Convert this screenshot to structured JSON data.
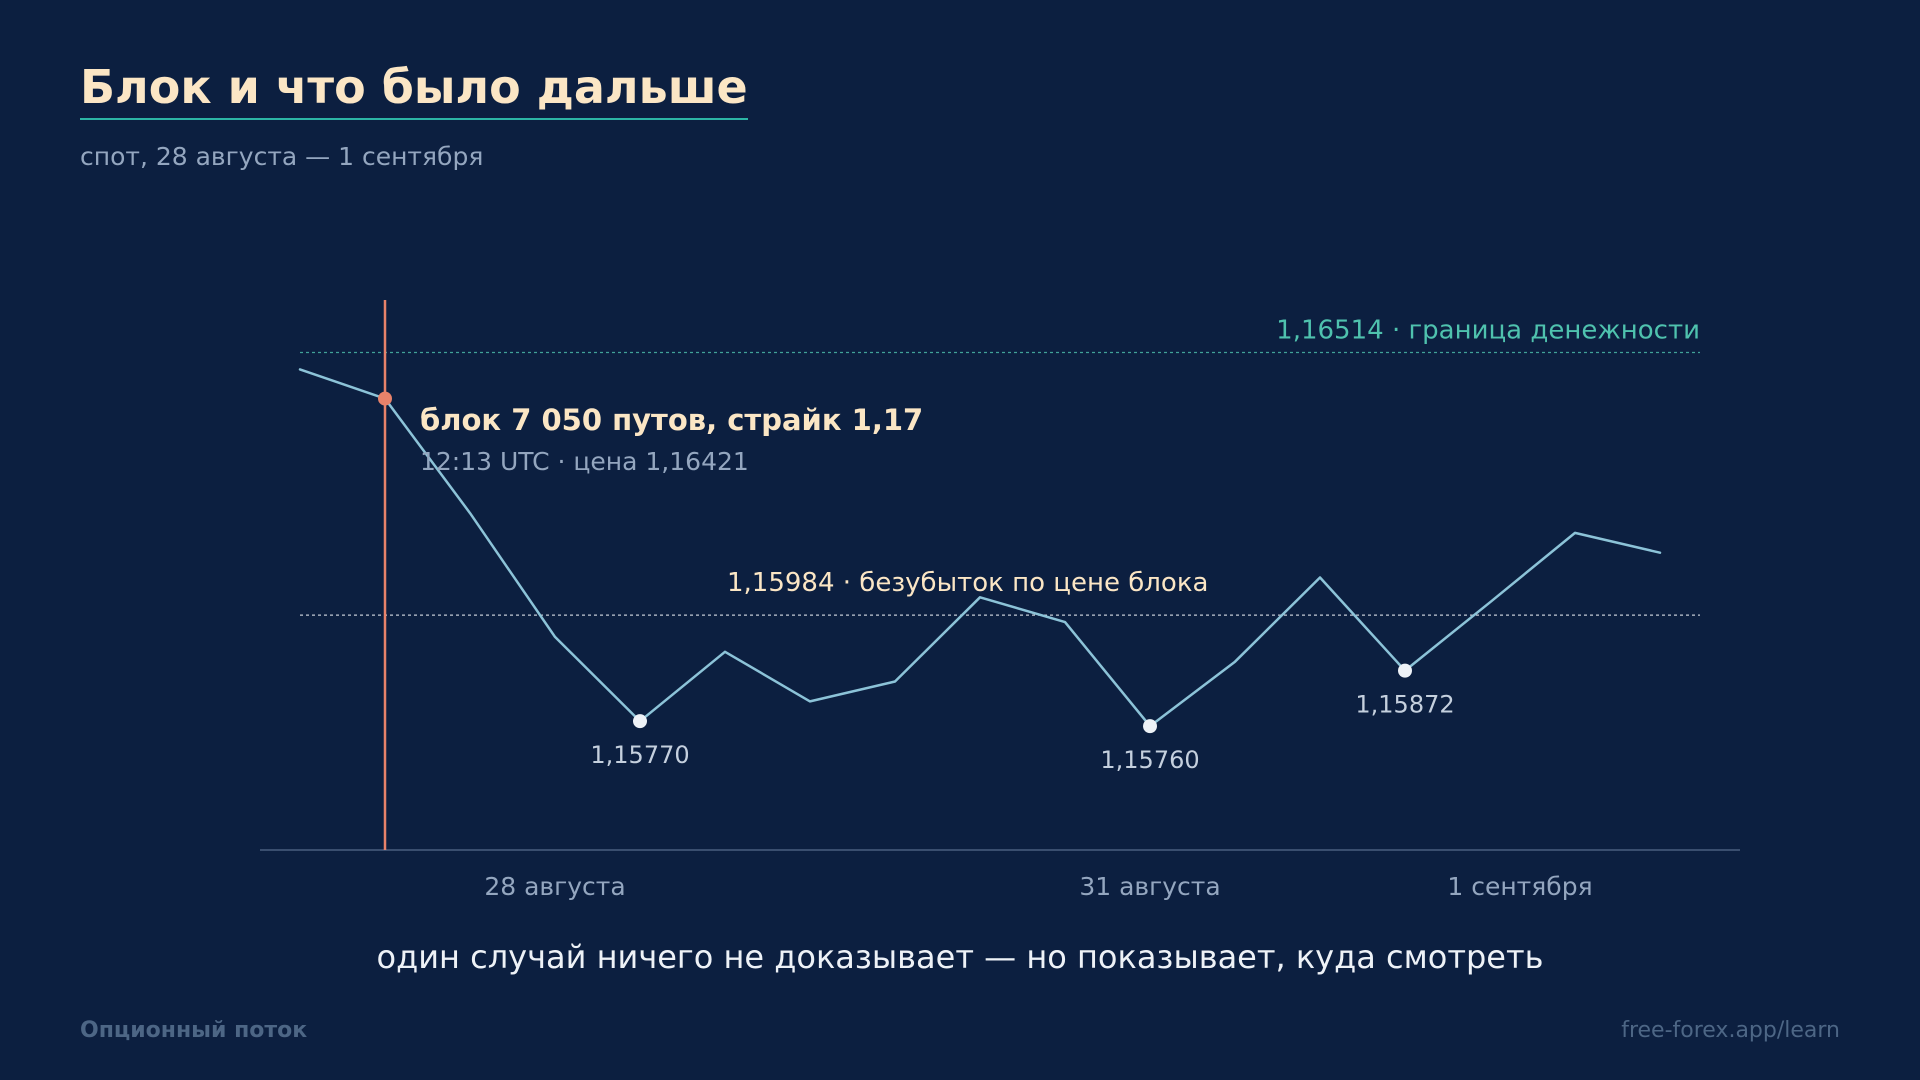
{
  "header": {
    "title": "Блок и что было дальше",
    "subtitle": "спот, 28 августа — 1 сентября"
  },
  "caption": "один случай ничего не доказывает — но показывает, куда смотреть",
  "footer": {
    "brand": "Опционный поток",
    "url": "free-forex.app/learn"
  },
  "colors": {
    "background": "#0c1f40",
    "price_line": "#8cc3d8",
    "block_marker": "#e8826a",
    "moneyness_line": "#4fc2ae",
    "breakeven_label": "#fbe6c5"
  },
  "chart_data": {
    "type": "line",
    "x_ticks": [
      "28 августа",
      "31 августа",
      "1 сентября"
    ],
    "series": [
      {
        "values": [
          1.1648,
          1.16421,
          1.1619,
          1.1594,
          1.1577,
          1.1591,
          1.1581,
          1.1585,
          1.1602,
          1.1597,
          1.1576,
          1.1589,
          1.1606,
          1.15872,
          1.1601,
          1.1615,
          1.1611
        ]
      }
    ],
    "ylim": [
      1.1551,
      1.1662
    ],
    "grid": false,
    "reference_lines": [
      {
        "value": 1.16514,
        "label": "1,16514 · граница денежности",
        "style": "dotted"
      },
      {
        "value": 1.15984,
        "label": "1,15984 · безубыток по цене блока",
        "style": "dotted"
      }
    ],
    "block_event": {
      "index": 1,
      "title": "блок 7 050 путов, страйк 1,17",
      "detail": "12:13 UTC · цена 1,16421"
    },
    "point_labels": [
      {
        "index": 4,
        "label": "1,15770"
      },
      {
        "index": 10,
        "label": "1,15760"
      },
      {
        "index": 13,
        "label": "1,15872"
      }
    ]
  }
}
